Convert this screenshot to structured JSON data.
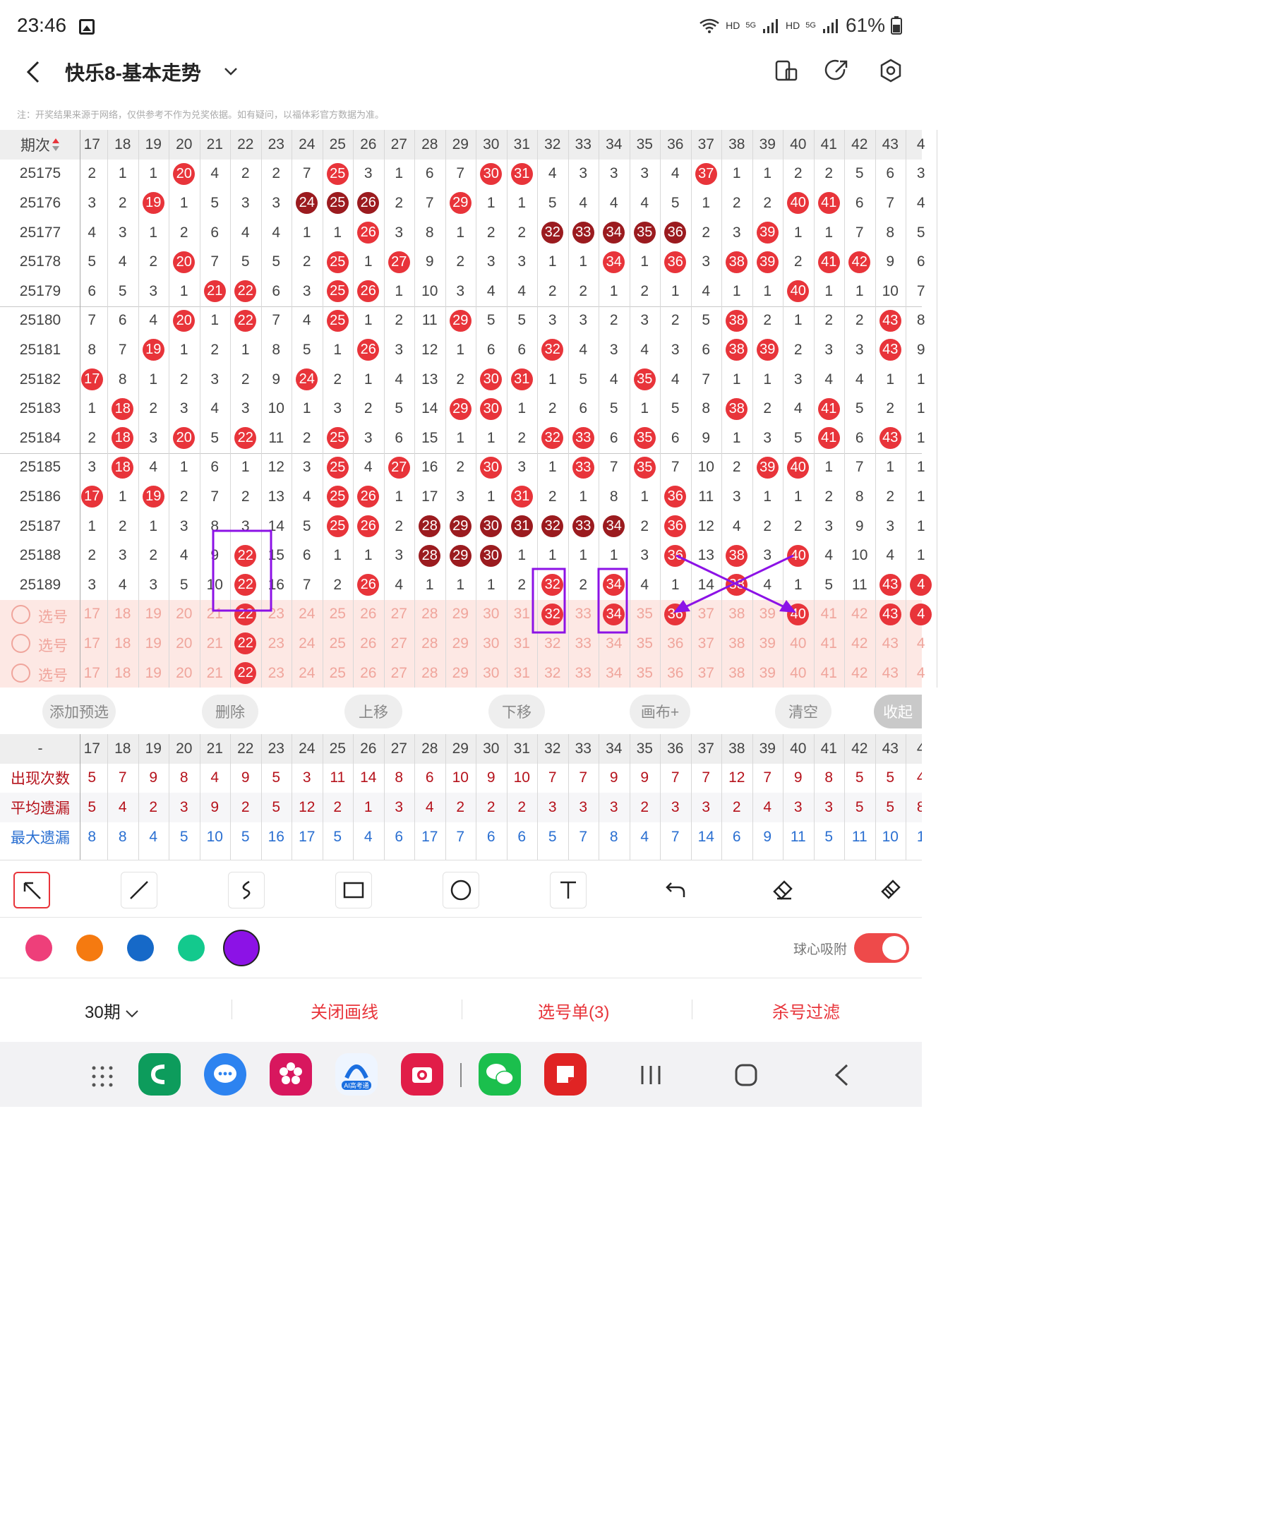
{
  "status_bar": {
    "time": "23:46",
    "network_labels": [
      "HD",
      "5G",
      "HD",
      "5G"
    ],
    "battery": "61%",
    "icons": [
      "gallery-icon",
      "wifi-icon",
      "signal-icon",
      "battery-icon"
    ]
  },
  "header": {
    "title": "快乐8-基本走势",
    "icons": [
      "back-arrow-icon",
      "chevron-down-icon",
      "layout-icon",
      "share-icon",
      "settings-icon"
    ]
  },
  "notice": "注：开奖结果来源于网络，仅供参考不作为兑奖依据。如有疑问，以福体彩官方数据为准。",
  "table": {
    "period_header": "期次",
    "columns": [
      "17",
      "18",
      "19",
      "20",
      "21",
      "22",
      "23",
      "24",
      "25",
      "26",
      "27",
      "28",
      "29",
      "30",
      "31",
      "32",
      "33",
      "34",
      "35",
      "36",
      "37",
      "38",
      "39",
      "40",
      "41",
      "42",
      "43",
      "4"
    ],
    "rows": [
      {
        "period": "25175",
        "cells": [
          "2",
          "1",
          "1",
          "20",
          "4",
          "2",
          "2",
          "7",
          "25",
          "3",
          "1",
          "6",
          "7",
          "30",
          "31",
          "4",
          "3",
          "3",
          "3",
          "4",
          "37",
          "1",
          "1",
          "2",
          "2",
          "5",
          "6",
          "3"
        ]
      },
      {
        "period": "25176",
        "cells": [
          "3",
          "2",
          "19",
          "1",
          "5",
          "3",
          "3",
          "24",
          "25",
          "26",
          "2",
          "7",
          "29",
          "1",
          "1",
          "5",
          "4",
          "4",
          "4",
          "5",
          "1",
          "2",
          "2",
          "40",
          "41",
          "6",
          "7",
          "4"
        ]
      },
      {
        "period": "25177",
        "cells": [
          "4",
          "3",
          "1",
          "2",
          "6",
          "4",
          "4",
          "1",
          "1",
          "26",
          "3",
          "8",
          "1",
          "2",
          "2",
          "32",
          "33",
          "34",
          "35",
          "36",
          "2",
          "3",
          "39",
          "1",
          "1",
          "7",
          "8",
          "5"
        ]
      },
      {
        "period": "25178",
        "cells": [
          "5",
          "4",
          "2",
          "20",
          "7",
          "5",
          "5",
          "2",
          "25",
          "1",
          "27",
          "9",
          "2",
          "3",
          "3",
          "1",
          "1",
          "34",
          "1",
          "36",
          "3",
          "38",
          "39",
          "2",
          "41",
          "42",
          "9",
          "6"
        ]
      },
      {
        "period": "25179",
        "cells": [
          "6",
          "5",
          "3",
          "1",
          "21",
          "22",
          "6",
          "3",
          "25",
          "26",
          "1",
          "10",
          "3",
          "4",
          "4",
          "2",
          "2",
          "1",
          "2",
          "1",
          "4",
          "1",
          "1",
          "40",
          "1",
          "1",
          "10",
          "7"
        ]
      },
      {
        "period": "25180",
        "cells": [
          "7",
          "6",
          "4",
          "20",
          "1",
          "22",
          "7",
          "4",
          "25",
          "1",
          "2",
          "11",
          "29",
          "5",
          "5",
          "3",
          "3",
          "2",
          "3",
          "2",
          "5",
          "38",
          "2",
          "1",
          "2",
          "2",
          "43",
          "8"
        ]
      },
      {
        "period": "25181",
        "cells": [
          "8",
          "7",
          "19",
          "1",
          "2",
          "1",
          "8",
          "5",
          "1",
          "26",
          "3",
          "12",
          "1",
          "6",
          "6",
          "32",
          "4",
          "3",
          "4",
          "3",
          "6",
          "38",
          "39",
          "2",
          "3",
          "3",
          "43",
          "9"
        ]
      },
      {
        "period": "25182",
        "cells": [
          "17",
          "8",
          "1",
          "2",
          "3",
          "2",
          "9",
          "24",
          "2",
          "1",
          "4",
          "13",
          "2",
          "30",
          "31",
          "1",
          "5",
          "4",
          "35",
          "4",
          "7",
          "1",
          "1",
          "3",
          "4",
          "4",
          "1",
          "1"
        ]
      },
      {
        "period": "25183",
        "cells": [
          "1",
          "18",
          "2",
          "3",
          "4",
          "3",
          "10",
          "1",
          "3",
          "2",
          "5",
          "14",
          "29",
          "30",
          "1",
          "2",
          "6",
          "5",
          "1",
          "5",
          "8",
          "38",
          "2",
          "4",
          "41",
          "5",
          "2",
          "1"
        ]
      },
      {
        "period": "25184",
        "cells": [
          "2",
          "18",
          "3",
          "20",
          "5",
          "22",
          "11",
          "2",
          "25",
          "3",
          "6",
          "15",
          "1",
          "1",
          "2",
          "32",
          "33",
          "6",
          "35",
          "6",
          "9",
          "1",
          "3",
          "5",
          "41",
          "6",
          "43",
          "1"
        ]
      },
      {
        "period": "25185",
        "cells": [
          "3",
          "18",
          "4",
          "1",
          "6",
          "1",
          "12",
          "3",
          "25",
          "4",
          "27",
          "16",
          "2",
          "30",
          "3",
          "1",
          "33",
          "7",
          "35",
          "7",
          "10",
          "2",
          "39",
          "40",
          "1",
          "7",
          "1",
          "1"
        ]
      },
      {
        "period": "25186",
        "cells": [
          "17",
          "1",
          "19",
          "2",
          "7",
          "2",
          "13",
          "4",
          "25",
          "26",
          "1",
          "17",
          "3",
          "1",
          "31",
          "2",
          "1",
          "8",
          "1",
          "36",
          "11",
          "3",
          "1",
          "1",
          "2",
          "8",
          "2",
          "1"
        ]
      },
      {
        "period": "25187",
        "cells": [
          "1",
          "2",
          "1",
          "3",
          "8",
          "3",
          "14",
          "5",
          "25",
          "26",
          "2",
          "28",
          "29",
          "30",
          "31",
          "32",
          "33",
          "34",
          "2",
          "36",
          "12",
          "4",
          "2",
          "2",
          "3",
          "9",
          "3",
          "1"
        ]
      },
      {
        "period": "25188",
        "cells": [
          "2",
          "3",
          "2",
          "4",
          "9",
          "22",
          "15",
          "6",
          "1",
          "1",
          "3",
          "28",
          "29",
          "30",
          "1",
          "1",
          "1",
          "1",
          "3",
          "36",
          "13",
          "38",
          "3",
          "40",
          "4",
          "10",
          "4",
          "1"
        ]
      },
      {
        "period": "25189",
        "cells": [
          "3",
          "4",
          "3",
          "5",
          "10",
          "22",
          "16",
          "7",
          "2",
          "26",
          "4",
          "1",
          "1",
          "1",
          "2",
          "32",
          "2",
          "34",
          "4",
          "1",
          "14",
          "38",
          "4",
          "1",
          "5",
          "11",
          "43",
          "4"
        ]
      }
    ],
    "selection_label": "选号",
    "selection_rows": [
      [
        "17",
        "18",
        "19",
        "20",
        "21",
        "22",
        "23",
        "24",
        "25",
        "26",
        "27",
        "28",
        "29",
        "30",
        "31",
        "32",
        "33",
        "34",
        "35",
        "36",
        "37",
        "38",
        "39",
        "40",
        "41",
        "42",
        "43",
        "4"
      ],
      [
        "17",
        "18",
        "19",
        "20",
        "21",
        "22",
        "23",
        "24",
        "25",
        "26",
        "27",
        "28",
        "29",
        "30",
        "31",
        "32",
        "33",
        "34",
        "35",
        "36",
        "37",
        "38",
        "39",
        "40",
        "41",
        "42",
        "43",
        "4"
      ],
      [
        "17",
        "18",
        "19",
        "20",
        "21",
        "22",
        "23",
        "24",
        "25",
        "26",
        "27",
        "28",
        "29",
        "30",
        "31",
        "32",
        "33",
        "34",
        "35",
        "36",
        "37",
        "38",
        "39",
        "40",
        "41",
        "42",
        "43",
        "4"
      ]
    ]
  },
  "actions": [
    "添加预选",
    "删除",
    "上移",
    "下移",
    "画布+",
    "清空",
    "收起"
  ],
  "stats": {
    "header_label": "-",
    "rows": [
      {
        "label": "出现次数",
        "color": "#b5121b",
        "values": [
          "5",
          "7",
          "9",
          "8",
          "4",
          "9",
          "5",
          "3",
          "11",
          "14",
          "8",
          "6",
          "10",
          "9",
          "10",
          "7",
          "7",
          "9",
          "9",
          "7",
          "7",
          "12",
          "7",
          "9",
          "8",
          "5",
          "5",
          "4"
        ]
      },
      {
        "label": "平均遗漏",
        "color": "#b5121b",
        "values": [
          "5",
          "4",
          "2",
          "3",
          "9",
          "2",
          "5",
          "12",
          "2",
          "1",
          "3",
          "4",
          "2",
          "2",
          "2",
          "3",
          "3",
          "3",
          "2",
          "3",
          "3",
          "2",
          "4",
          "3",
          "3",
          "5",
          "5",
          "8"
        ]
      },
      {
        "label": "最大遗漏",
        "color": "#2a6fd1",
        "values": [
          "8",
          "8",
          "4",
          "5",
          "10",
          "5",
          "16",
          "17",
          "5",
          "4",
          "6",
          "17",
          "7",
          "6",
          "6",
          "5",
          "7",
          "8",
          "4",
          "7",
          "14",
          "6",
          "9",
          "11",
          "5",
          "11",
          "10",
          "1"
        ]
      }
    ]
  },
  "draw_tools": [
    "select-arrow-icon",
    "line-icon",
    "curve-icon",
    "rectangle-icon",
    "circle-icon",
    "text-icon",
    "undo-icon",
    "eraser-icon",
    "clear-icon"
  ],
  "colors": [
    "#ee3f7a",
    "#f57a10",
    "#1669c8",
    "#13c98d",
    "#8c12e6"
  ],
  "ball_snap_label": "球心吸附",
  "bottom_bar": {
    "periods": "30期",
    "close_lines": "关闭画线",
    "selection_list": "选号单(3)",
    "kill_filter": "杀号过滤"
  },
  "nav_apps": [
    "apps-grid-icon",
    "phone-app-icon",
    "messages-app-icon",
    "flower-app-icon",
    "ai-app-icon",
    "camera-app-icon",
    "wechat-app-icon",
    "notes-app-icon"
  ],
  "ai_app_label": "AI高考通"
}
